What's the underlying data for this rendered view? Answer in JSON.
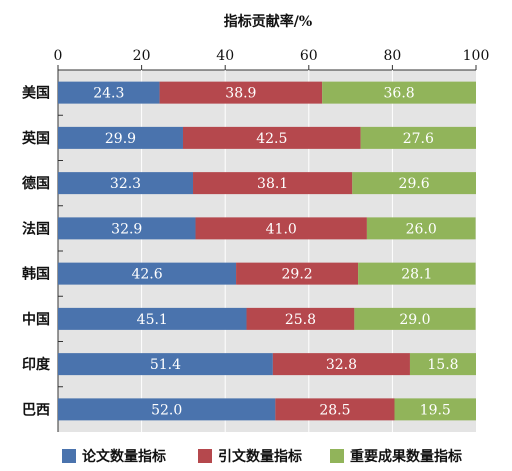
{
  "chart_data": {
    "type": "bar",
    "orientation": "horizontal",
    "stacked": true,
    "xlabel": "指标贡献率/%",
    "xlim": [
      0,
      100
    ],
    "xticks": [
      0,
      20,
      40,
      60,
      80,
      100
    ],
    "categories": [
      "美国",
      "英国",
      "德国",
      "法国",
      "韩国",
      "中国",
      "印度",
      "巴西"
    ],
    "series": [
      {
        "name": "论文数量指标",
        "color": "#4a73ad",
        "values": [
          24.3,
          29.9,
          32.3,
          32.9,
          42.6,
          45.1,
          51.4,
          52.0
        ]
      },
      {
        "name": "引文数量指标",
        "color": "#b5484d",
        "values": [
          38.9,
          42.5,
          38.1,
          41.0,
          29.2,
          25.8,
          32.8,
          28.5
        ]
      },
      {
        "name": "重要成果数量指标",
        "color": "#91b45a",
        "values": [
          36.8,
          27.6,
          29.6,
          26.0,
          28.1,
          29.0,
          15.8,
          19.5
        ]
      }
    ],
    "legend_position": "bottom",
    "plot_background": "#e4e4e4"
  }
}
